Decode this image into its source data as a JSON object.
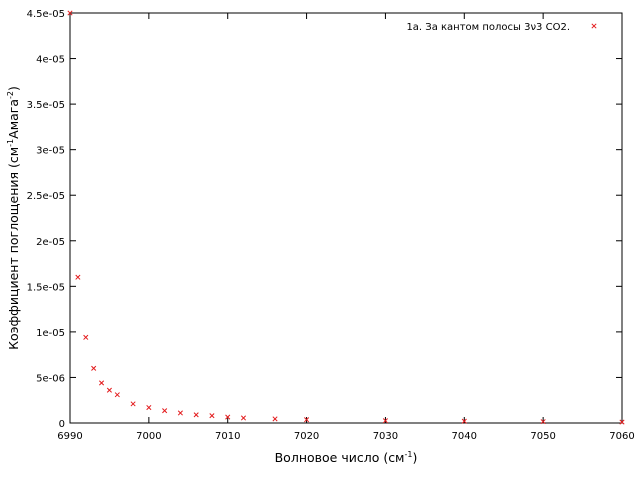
{
  "chart_data": {
    "type": "scatter",
    "title": "",
    "xlabel": "Волновое число (см",
    "xlabel_sup": "-1",
    "xlabel_tail": ")",
    "ylabel": "Коэффициент поглощения (см",
    "ylabel_sup1": "-1",
    "ylabel_mid": "Амага",
    "ylabel_sup2": "-2",
    "ylabel_tail": ")",
    "xlim": [
      6990,
      7060
    ],
    "ylim": [
      0,
      4.5e-05
    ],
    "x_ticks": [
      6990,
      7000,
      7010,
      7020,
      7030,
      7040,
      7050,
      7060
    ],
    "y_ticks": [
      0,
      5e-06,
      1e-05,
      1.5e-05,
      2e-05,
      2.5e-05,
      3e-05,
      3.5e-05,
      4e-05,
      4.5e-05
    ],
    "y_tick_labels": [
      "0",
      "5e-06",
      "1e-05",
      "1.5e-05",
      "2e-05",
      "2.5e-05",
      "3e-05",
      "3.5e-05",
      "4e-05",
      "4.5e-05"
    ],
    "grid": false,
    "legend_position": "top-right",
    "series": [
      {
        "name": "1a. За кантом полосы 3ν3 CO2.",
        "color": "#e31a1c",
        "marker": "cross",
        "x": [
          6990,
          6991,
          6992,
          6993,
          6994,
          6995,
          6996,
          6998,
          7000,
          7002,
          7004,
          7006,
          7008,
          7010,
          7012,
          7016,
          7020,
          7030,
          7040,
          7050,
          7060
        ],
        "y": [
          4.5e-05,
          1.6e-05,
          9.4e-06,
          6e-06,
          4.4e-06,
          3.6e-06,
          3.1e-06,
          2.1e-06,
          1.7e-06,
          1.35e-06,
          1.1e-06,
          9e-07,
          8e-07,
          6.5e-07,
          5.5e-07,
          4.5e-07,
          3.6e-07,
          2.5e-07,
          2e-07,
          1.5e-07,
          1e-07
        ]
      }
    ]
  }
}
